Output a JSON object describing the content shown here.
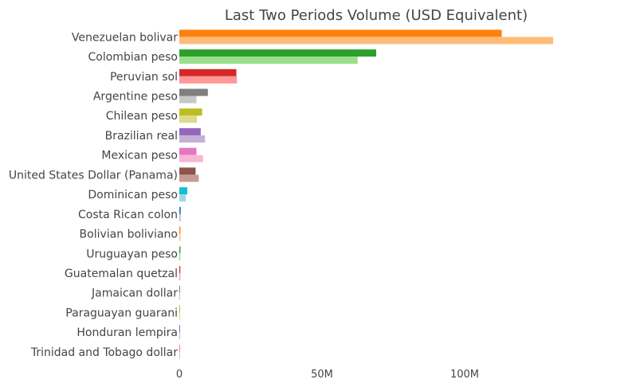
{
  "chart_data": {
    "type": "bar",
    "orientation": "horizontal",
    "title": "Last Two Periods Volume (USD Equivalent)",
    "xlabel": "",
    "ylabel": "",
    "xlim": [
      0,
      160000000
    ],
    "x_ticks": [
      {
        "value": 0,
        "label": "0"
      },
      {
        "value": 50000000,
        "label": "50M"
      },
      {
        "value": 100000000,
        "label": "100M"
      }
    ],
    "grid": false,
    "legend": "none",
    "categories": [
      {
        "label": "Venezuelan bolivar",
        "values": [
          113000000,
          131000000
        ],
        "colors": [
          "#ff7f0e",
          "#ffbb78"
        ]
      },
      {
        "label": "Colombian peso",
        "values": [
          69000000,
          62500000
        ],
        "colors": [
          "#2ca02c",
          "#98df8a"
        ]
      },
      {
        "label": "Peruvian sol",
        "values": [
          20000000,
          20200000
        ],
        "colors": [
          "#d62728",
          "#ff9896"
        ]
      },
      {
        "label": "Argentine peso",
        "values": [
          10000000,
          6000000
        ],
        "colors": [
          "#7f7f7f",
          "#c7c7c7"
        ]
      },
      {
        "label": "Chilean peso",
        "values": [
          8000000,
          6200000
        ],
        "colors": [
          "#bcbd22",
          "#dbdb8d"
        ]
      },
      {
        "label": "Brazilian real",
        "values": [
          7500000,
          9000000
        ],
        "colors": [
          "#9467bd",
          "#c5b0d5"
        ]
      },
      {
        "label": "Mexican peso",
        "values": [
          6000000,
          8300000
        ],
        "colors": [
          "#e377c2",
          "#f7b6d2"
        ]
      },
      {
        "label": "United States Dollar (Panama)",
        "values": [
          5700000,
          6800000
        ],
        "colors": [
          "#8c564b",
          "#c49c94"
        ]
      },
      {
        "label": "Dominican peso",
        "values": [
          2800000,
          2300000
        ],
        "colors": [
          "#17becf",
          "#9edae5"
        ]
      },
      {
        "label": "Costa Rican colon",
        "values": [
          500000,
          500000
        ],
        "colors": [
          "#1f77b4",
          "#aec7e8"
        ]
      },
      {
        "label": "Bolivian boliviano",
        "values": [
          400000,
          400000
        ],
        "colors": [
          "#ff7f0e",
          "#ffbb78"
        ]
      },
      {
        "label": "Uruguayan peso",
        "values": [
          400000,
          350000
        ],
        "colors": [
          "#2ca02c",
          "#98df8a"
        ]
      },
      {
        "label": "Guatemalan quetzal",
        "values": [
          350000,
          350000
        ],
        "colors": [
          "#d62728",
          "#ff9896"
        ]
      },
      {
        "label": "Jamaican dollar",
        "values": [
          100000,
          100000
        ],
        "colors": [
          "#7f7f7f",
          "#c7c7c7"
        ]
      },
      {
        "label": "Paraguayan guarani",
        "values": [
          100000,
          100000
        ],
        "colors": [
          "#bcbd22",
          "#dbdb8d"
        ]
      },
      {
        "label": "Honduran lempira",
        "values": [
          50000,
          50000
        ],
        "colors": [
          "#9467bd",
          "#c5b0d5"
        ]
      },
      {
        "label": "Trinidad and Tobago dollar",
        "values": [
          50000,
          50000
        ],
        "colors": [
          "#e377c2",
          "#f7b6d2"
        ]
      }
    ]
  }
}
